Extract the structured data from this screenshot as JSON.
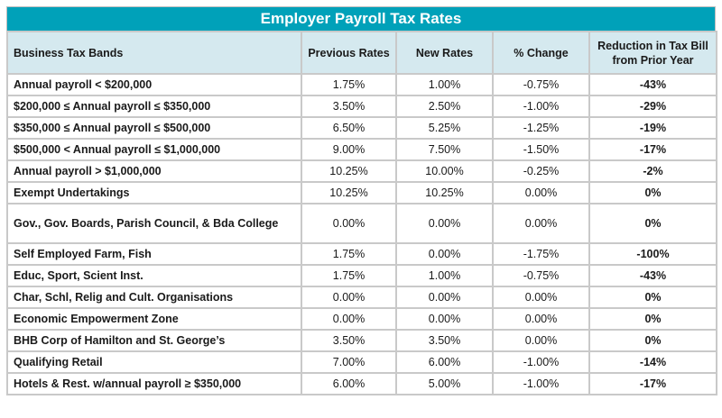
{
  "title": "Employer Payroll Tax Rates",
  "headers": [
    "Business Tax Bands",
    "Previous Rates",
    "New Rates",
    "% Change",
    "Reduction in Tax Bill from Prior Year"
  ],
  "rows": [
    {
      "band": "Annual payroll < $200,000",
      "prev": "1.75%",
      "new": "1.00%",
      "change": "-0.75%",
      "reduction": "-43%"
    },
    {
      "band": "$200,000 ≤ Annual payroll ≤ $350,000",
      "prev": "3.50%",
      "new": "2.50%",
      "change": "-1.00%",
      "reduction": "-29%"
    },
    {
      "band": "$350,000 ≤ Annual payroll ≤ $500,000",
      "prev": "6.50%",
      "new": "5.25%",
      "change": "-1.25%",
      "reduction": "-19%"
    },
    {
      "band": "$500,000 < Annual payroll ≤ $1,000,000",
      "prev": "9.00%",
      "new": "7.50%",
      "change": "-1.50%",
      "reduction": "-17%"
    },
    {
      "band": "Annual payroll > $1,000,000",
      "prev": "10.25%",
      "new": "10.00%",
      "change": "-0.25%",
      "reduction": "-2%"
    },
    {
      "band": "Exempt Undertakings",
      "prev": "10.25%",
      "new": "10.25%",
      "change": "0.00%",
      "reduction": "0%"
    },
    {
      "band": "Gov., Gov. Boards, Parish Council, & Bda College",
      "prev": "0.00%",
      "new": "0.00%",
      "change": "0.00%",
      "reduction": "0%"
    },
    {
      "band": "Self Employed Farm, Fish",
      "prev": "1.75%",
      "new": "0.00%",
      "change": "-1.75%",
      "reduction": "-100%"
    },
    {
      "band": "Educ, Sport, Scient Inst.",
      "prev": "1.75%",
      "new": "1.00%",
      "change": "-0.75%",
      "reduction": "-43%"
    },
    {
      "band": "Char, Schl, Relig and Cult. Organisations",
      "prev": "0.00%",
      "new": "0.00%",
      "change": "0.00%",
      "reduction": "0%"
    },
    {
      "band": "Economic Empowerment Zone",
      "prev": "0.00%",
      "new": "0.00%",
      "change": "0.00%",
      "reduction": "0%"
    },
    {
      "band": "BHB Corp of Hamilton and St. George’s",
      "prev": "3.50%",
      "new": "3.50%",
      "change": "0.00%",
      "reduction": "0%"
    },
    {
      "band": "Qualifying Retail",
      "prev": "7.00%",
      "new": "6.00%",
      "change": "-1.00%",
      "reduction": "-14%"
    },
    {
      "band": "Hotels & Rest. w/annual payroll ≥ $350,000",
      "prev": "6.00%",
      "new": "5.00%",
      "change": "-1.00%",
      "reduction": "-17%"
    }
  ],
  "colors": {
    "title_bg": "#00a1b9",
    "header_bg": "#d5e9ef"
  }
}
